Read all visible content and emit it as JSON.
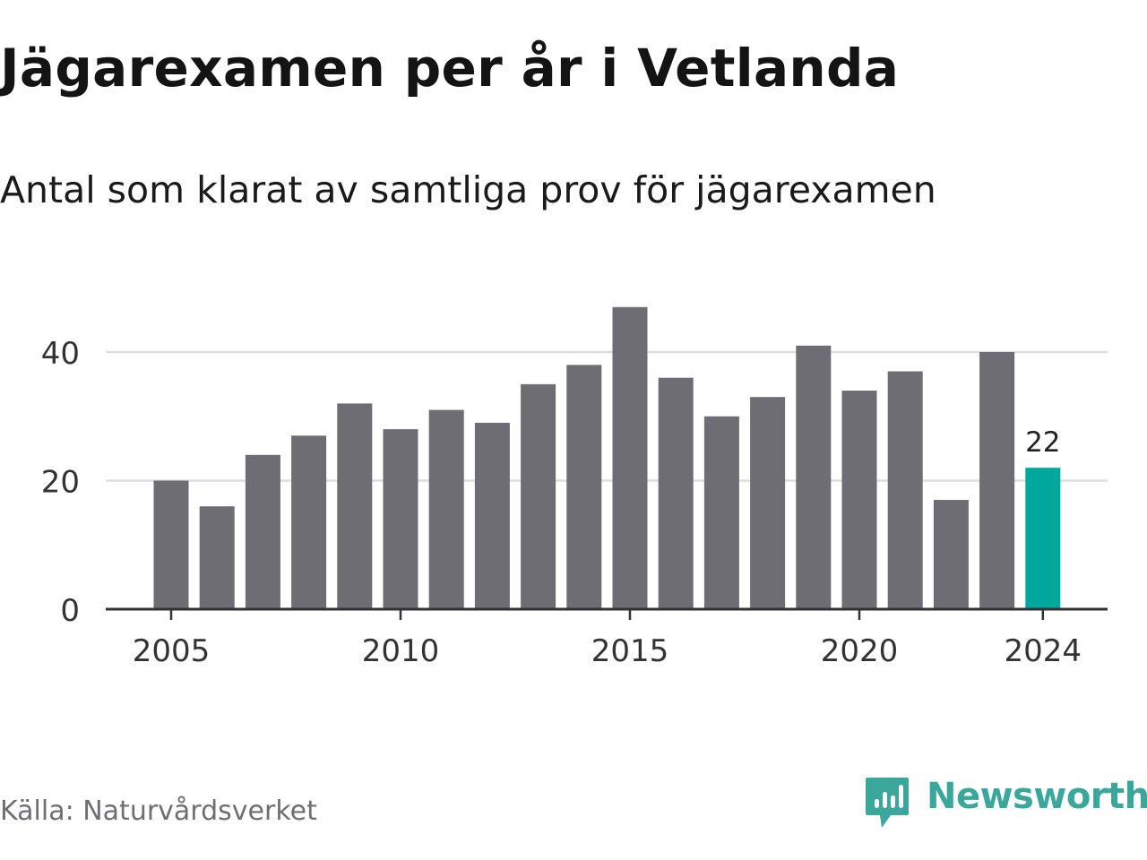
{
  "header": {
    "title": "Jägarexamen per år i Vetlanda",
    "subtitle": "Antal som klarat av samtliga prov för jägarexamen"
  },
  "footer": {
    "source": "Källa: Naturvårdsverket",
    "brand": "Newsworthy",
    "brand_icon": "newsworthy-logo-icon"
  },
  "colors": {
    "bar": "#6e6d73",
    "highlight": "#00a79d",
    "brand": "#3aa79a",
    "grid": "#dddddd",
    "axis": "#333333"
  },
  "chart_data": {
    "type": "bar",
    "x": [
      2005,
      2006,
      2007,
      2008,
      2009,
      2010,
      2011,
      2012,
      2013,
      2014,
      2015,
      2016,
      2017,
      2018,
      2019,
      2020,
      2021,
      2022,
      2023,
      2024
    ],
    "values": [
      20,
      16,
      24,
      27,
      32,
      28,
      31,
      29,
      35,
      38,
      47,
      36,
      30,
      33,
      41,
      34,
      37,
      17,
      40,
      22
    ],
    "highlight": 2024,
    "data_labels": [
      {
        "x": 2024,
        "label": "22"
      }
    ],
    "x_ticks": [
      "2005",
      "2010",
      "2015",
      "2020",
      "2024"
    ],
    "y_ticks": [
      "0",
      "20",
      "40"
    ],
    "ylim": [
      0,
      50
    ],
    "grid": true,
    "legend": "none"
  }
}
